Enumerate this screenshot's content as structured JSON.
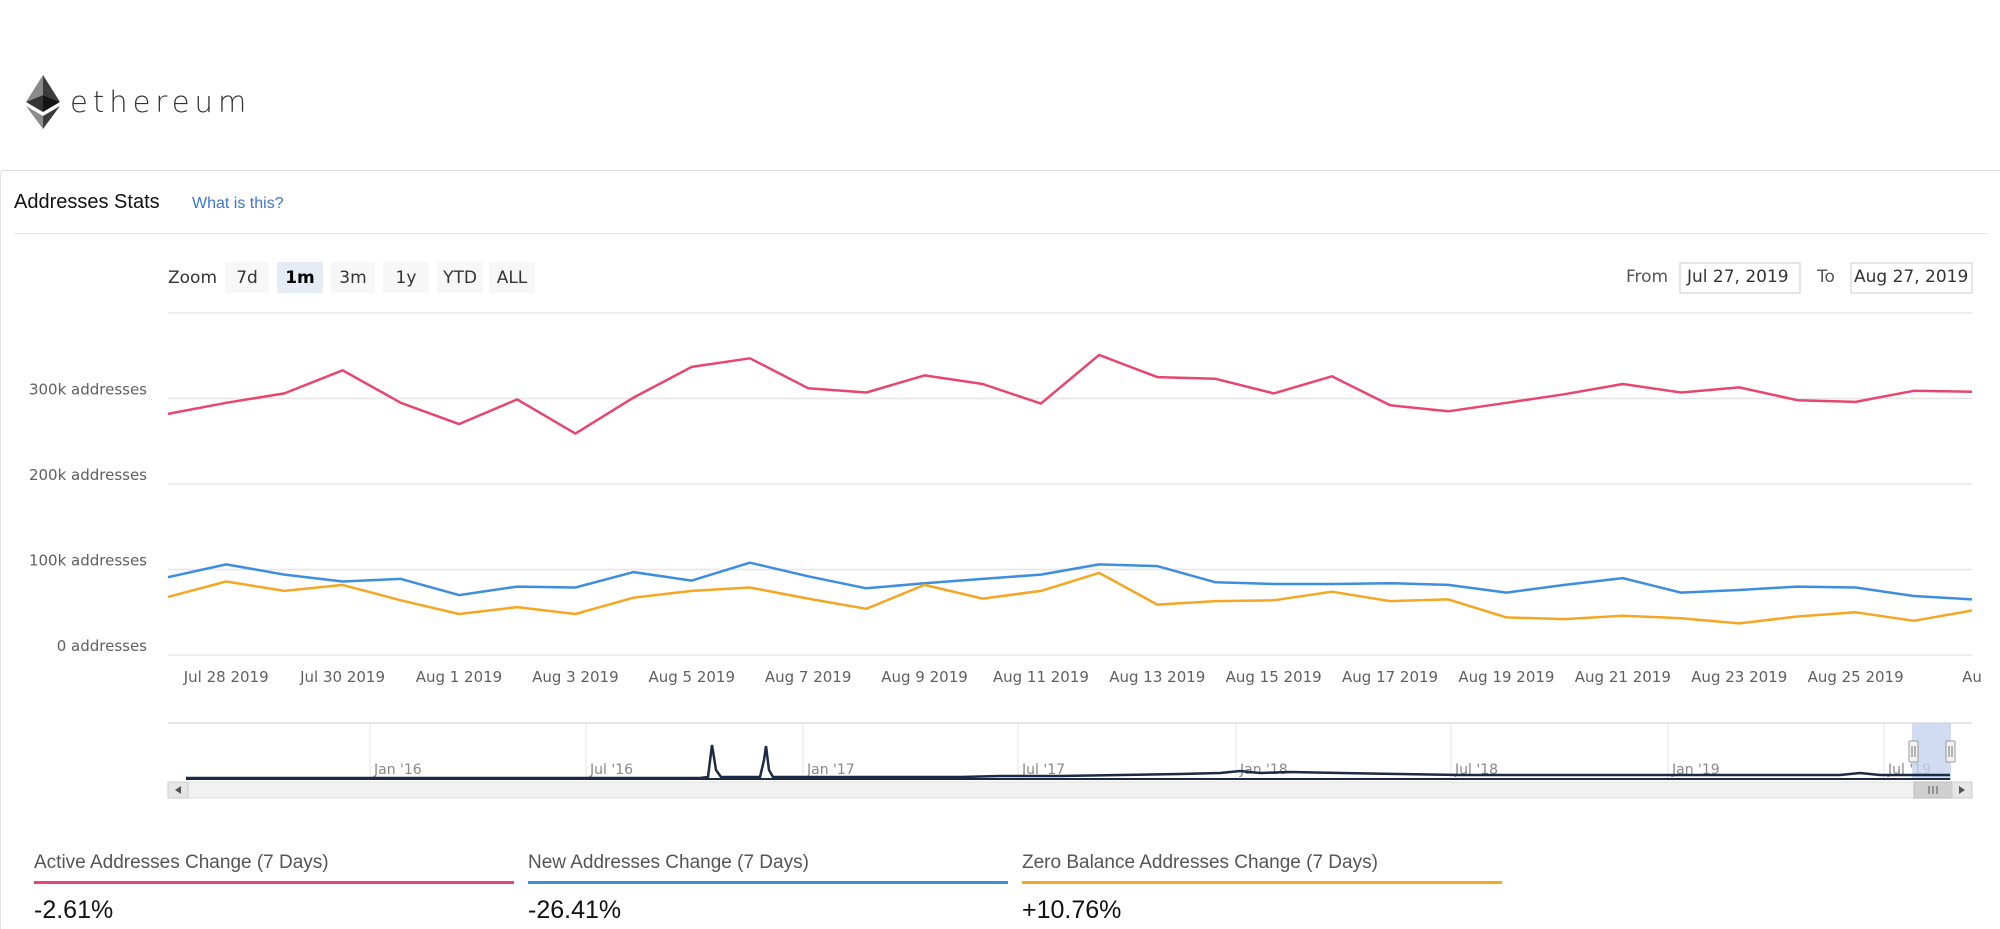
{
  "brand": {
    "name": "ethereum",
    "icon": "ethereum-diamond-icon"
  },
  "panel": {
    "title": "Addresses Stats",
    "help_link": "What is this?"
  },
  "zoom": {
    "label": "Zoom",
    "buttons": [
      "7d",
      "1m",
      "3m",
      "1y",
      "YTD",
      "ALL"
    ],
    "active": "1m"
  },
  "range": {
    "from_label": "From",
    "from_value": "Jul 27, 2019",
    "to_label": "To",
    "to_value": "Aug 27, 2019"
  },
  "colors": {
    "active": "#e8466e",
    "new": "#3d8ee0",
    "zero": "#f5a623",
    "navigator_line": "#1c2a45",
    "navigator_selection": "#c5d2ee"
  },
  "chart_data": {
    "type": "line",
    "x": [
      "Jul 27 2019",
      "Jul 28 2019",
      "Jul 29 2019",
      "Jul 30 2019",
      "Jul 31 2019",
      "Aug 1 2019",
      "Aug 2 2019",
      "Aug 3 2019",
      "Aug 4 2019",
      "Aug 5 2019",
      "Aug 6 2019",
      "Aug 7 2019",
      "Aug 8 2019",
      "Aug 9 2019",
      "Aug 10 2019",
      "Aug 11 2019",
      "Aug 12 2019",
      "Aug 13 2019",
      "Aug 14 2019",
      "Aug 15 2019",
      "Aug 16 2019",
      "Aug 17 2019",
      "Aug 18 2019",
      "Aug 19 2019",
      "Aug 20 2019",
      "Aug 21 2019",
      "Aug 22 2019",
      "Aug 23 2019",
      "Aug 24 2019",
      "Aug 25 2019",
      "Aug 26 2019",
      "Aug 27 2019"
    ],
    "x_tick_labels": [
      "Jul 28 2019",
      "Jul 30 2019",
      "Aug 1 2019",
      "Aug 3 2019",
      "Aug 5 2019",
      "Aug 7 2019",
      "Aug 9 2019",
      "Aug 11 2019",
      "Aug 13 2019",
      "Aug 15 2019",
      "Aug 17 2019",
      "Aug 19 2019",
      "Aug 21 2019",
      "Aug 23 2019",
      "Aug 25 2019",
      "Au"
    ],
    "y_tick_labels": [
      "0 addresses",
      "100k addresses",
      "200k addresses",
      "300k addresses"
    ],
    "ylim": [
      0,
      400000
    ],
    "series": [
      {
        "name": "Active Addresses",
        "color": "#e8466e",
        "values": [
          282000,
          295000,
          306000,
          333000,
          295000,
          270000,
          299000,
          259000,
          301000,
          337000,
          347000,
          312000,
          307000,
          327000,
          317000,
          294000,
          351000,
          325000,
          323000,
          306000,
          326000,
          292000,
          285000,
          295000,
          305000,
          317000,
          307000,
          313000,
          298000,
          296000,
          309000,
          308000
        ]
      },
      {
        "name": "New Addresses",
        "color": "#3d8ee0",
        "values": [
          91000,
          106000,
          94000,
          86000,
          89000,
          70000,
          80000,
          79000,
          97000,
          87000,
          108000,
          92000,
          78000,
          84000,
          89000,
          94000,
          106000,
          104000,
          85000,
          83000,
          83000,
          84000,
          82000,
          73000,
          82000,
          90000,
          73000,
          76000,
          80000,
          79000,
          69000,
          65000
        ]
      },
      {
        "name": "Zero Balance Addresses",
        "color": "#f5a623",
        "values": [
          68000,
          86000,
          75000,
          82000,
          64000,
          48000,
          56000,
          48000,
          67000,
          75000,
          79000,
          66000,
          54000,
          82000,
          66000,
          75000,
          96000,
          59000,
          63000,
          64000,
          74000,
          63000,
          65000,
          44000,
          42000,
          46000,
          43000,
          37000,
          45000,
          50000,
          40000,
          52000
        ]
      }
    ],
    "navigator": {
      "tick_labels": [
        "Jan '16",
        "Jul '16",
        "Jan '17",
        "Jul '17",
        "Jan '18",
        "Jul '18",
        "Jan '19",
        "Jul '19"
      ]
    },
    "legend": "bottom"
  },
  "stats": [
    {
      "label": "Active Addresses Change (7 Days)",
      "value": "-2.61%",
      "color": "#e8466e"
    },
    {
      "label": "New Addresses Change (7 Days)",
      "value": "-26.41%",
      "color": "#3d8ee0"
    },
    {
      "label": "Zero Balance Addresses Change (7 Days)",
      "value": "+10.76%",
      "color": "#f5a623"
    }
  ]
}
